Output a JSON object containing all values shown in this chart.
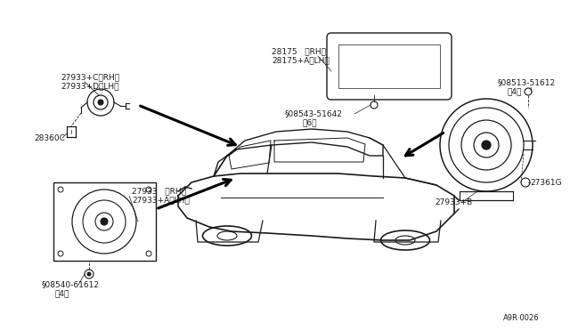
{
  "bg_color": "#ffffff",
  "fig_ref": "A9R·0026",
  "lc": "#1a1a1a",
  "tc": "#1a1a1a",
  "parts": {
    "tweeter_label1": "27933+C〈RH〉",
    "tweeter_label2": "27933+D〈LH〉",
    "tweeter_connector_label": "28360C",
    "door_speaker_label1": "27933   〈RH〉",
    "door_speaker_label2": "27933+A〈LH〉",
    "door_speaker_bolt_label": "§08540-61612",
    "door_speaker_bolt_qty": "（4）",
    "rear_deck_grille_label1": "28175   〈RH〉",
    "rear_deck_grille_label2": "28175+A〈LH〉",
    "rear_deck_bolt1_label": "§08543-51642",
    "rear_deck_bolt1_qty": "（6）",
    "rear_speaker_bolt_label": "§08513-51612",
    "rear_speaker_bolt_qty": "（4）",
    "rear_speaker_label": "27933+B",
    "rear_speaker_nut_label": "27361G"
  }
}
